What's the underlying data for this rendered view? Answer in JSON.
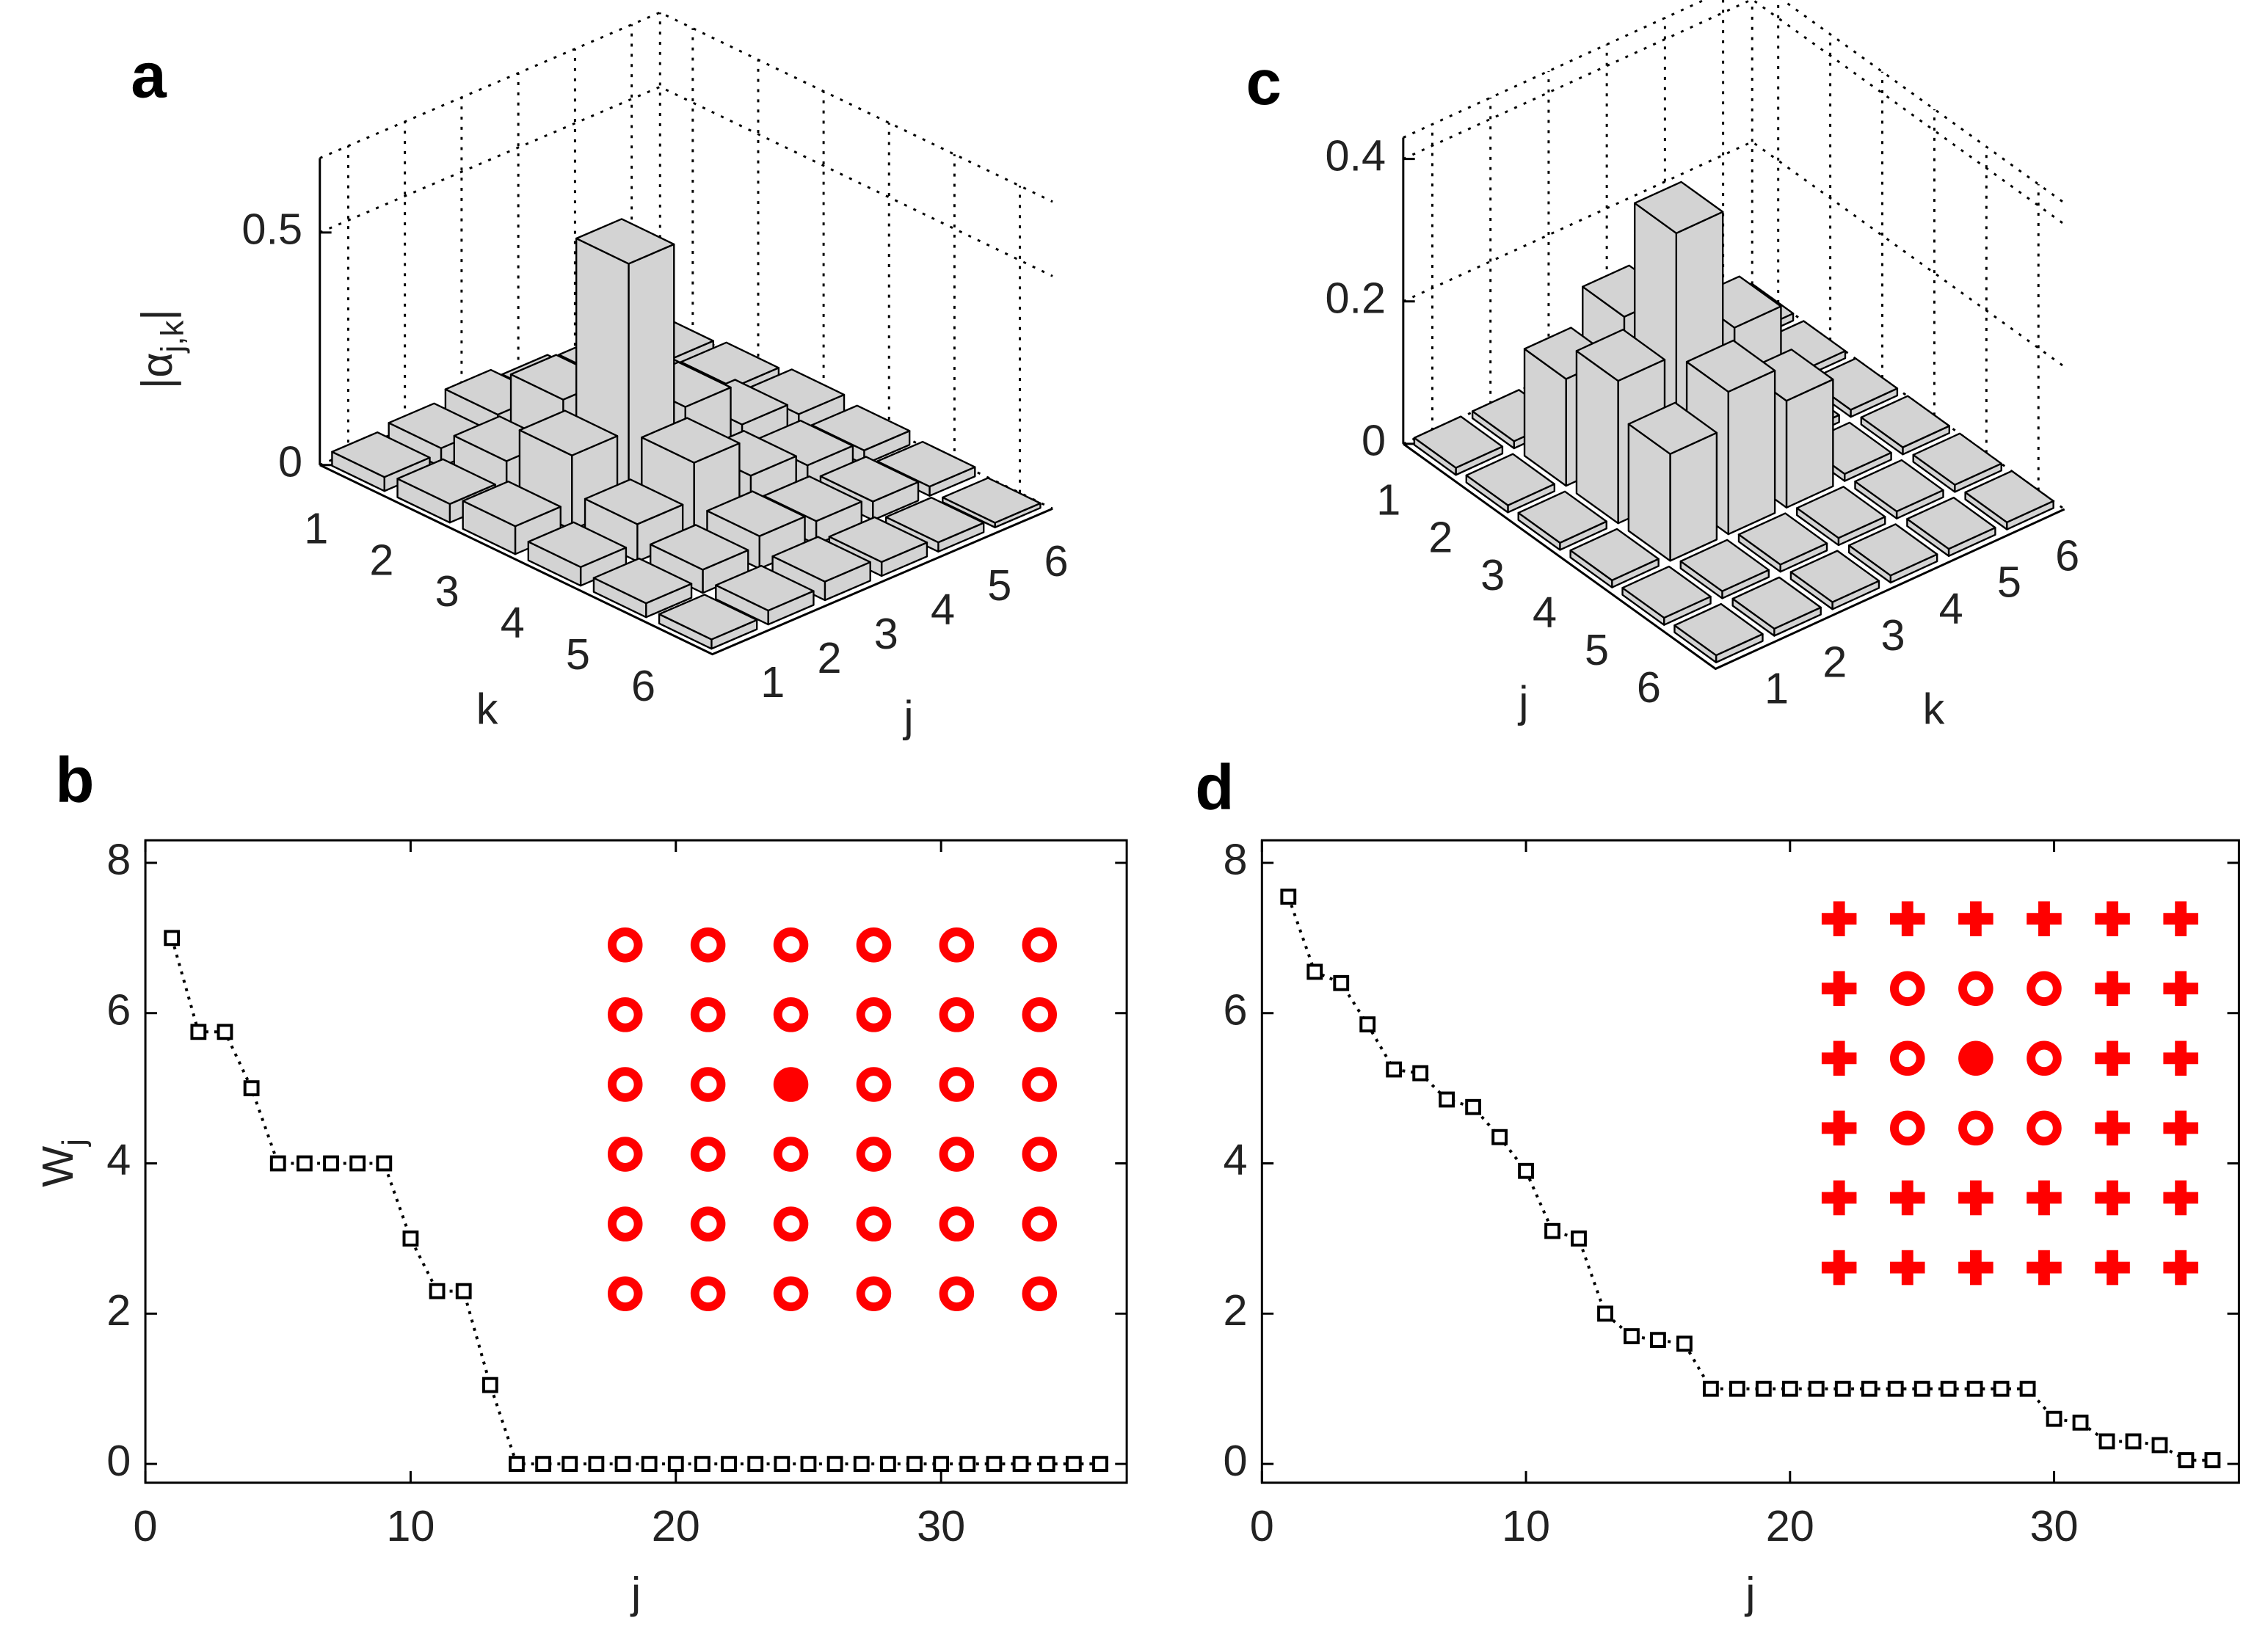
{
  "chart_data": [
    {
      "type": "bar3d",
      "panel": "a",
      "left_axis_label": "k",
      "right_axis_label": "j",
      "left_categories": [
        1,
        2,
        3,
        4,
        5,
        6
      ],
      "right_categories": [
        1,
        2,
        3,
        4,
        5,
        6
      ],
      "z": [
        [
          0.03,
          0.04,
          0.06,
          0.04,
          0.03,
          0.02
        ],
        [
          0.04,
          0.08,
          0.16,
          0.08,
          0.05,
          0.03
        ],
        [
          0.06,
          0.16,
          0.52,
          0.16,
          0.07,
          0.04
        ],
        [
          0.04,
          0.08,
          0.16,
          0.08,
          0.05,
          0.03
        ],
        [
          0.03,
          0.05,
          0.07,
          0.05,
          0.04,
          0.02
        ],
        [
          0.02,
          0.03,
          0.04,
          0.03,
          0.02,
          0.01
        ]
      ],
      "zlim": [
        0,
        0.66
      ],
      "zticks": [
        0,
        0.5
      ],
      "zlabel": [
        "|α",
        "j,k",
        "|"
      ],
      "color": "#d3d3d3",
      "grid": true
    },
    {
      "type": "line",
      "panel": "b",
      "x": [
        1,
        2,
        3,
        4,
        5,
        6,
        7,
        8,
        9,
        10,
        11,
        12,
        13,
        14,
        15,
        16,
        17,
        18,
        19,
        20,
        21,
        22,
        23,
        24,
        25,
        26,
        27,
        28,
        29,
        30,
        31,
        32,
        33,
        34,
        35,
        36
      ],
      "values": [
        7,
        5.75,
        5.75,
        5,
        4,
        4,
        4,
        4,
        4,
        3,
        2.3,
        2.3,
        1.05,
        0,
        0,
        0,
        0,
        0,
        0,
        0,
        0,
        0,
        0,
        0,
        0,
        0,
        0,
        0,
        0,
        0,
        0,
        0,
        0,
        0,
        0,
        0
      ],
      "xlim": [
        0,
        37
      ],
      "xticks": [
        0,
        10,
        20,
        30
      ],
      "ylim": [
        -0.25,
        8.3
      ],
      "yticks": [
        0,
        2,
        4,
        6,
        8
      ],
      "xlabel": "j",
      "ylabel": [
        "W",
        "j"
      ],
      "color": "#000000",
      "inset": {
        "color": "#ff0000",
        "rows": [
          "oooooo",
          "oooooo",
          "oo●ooo",
          "oooooo",
          "oooooo",
          "oooooo"
        ]
      }
    },
    {
      "type": "bar3d",
      "panel": "c",
      "left_axis_label": "j",
      "right_axis_label": "k",
      "left_categories": [
        1,
        2,
        3,
        4,
        5,
        6
      ],
      "right_categories": [
        1,
        2,
        3,
        4,
        5,
        6
      ],
      "z": [
        [
          0.01,
          0.01,
          0.01,
          0.01,
          0.01,
          0.01
        ],
        [
          0.01,
          0.15,
          0.2,
          0.15,
          0.01,
          0.01
        ],
        [
          0.01,
          0.2,
          0.37,
          0.2,
          0.01,
          0.01
        ],
        [
          0.01,
          0.15,
          0.2,
          0.15,
          0.01,
          0.01
        ],
        [
          0.01,
          0.01,
          0.01,
          0.01,
          0.01,
          0.01
        ],
        [
          0.01,
          0.01,
          0.01,
          0.01,
          0.01,
          0.01
        ]
      ],
      "zlim": [
        0,
        0.43
      ],
      "zticks": [
        0,
        0.2,
        0.4
      ],
      "color": "#d3d3d3",
      "grid": true
    },
    {
      "type": "line",
      "panel": "d",
      "x": [
        1,
        2,
        3,
        4,
        5,
        6,
        7,
        8,
        9,
        10,
        11,
        12,
        13,
        14,
        15,
        16,
        17,
        18,
        19,
        20,
        21,
        22,
        23,
        24,
        25,
        26,
        27,
        28,
        29,
        30,
        31,
        32,
        33,
        34,
        35,
        36
      ],
      "values": [
        7.55,
        6.55,
        6.4,
        5.85,
        5.25,
        5.2,
        4.85,
        4.75,
        4.35,
        3.9,
        3.1,
        3.0,
        2.0,
        1.7,
        1.65,
        1.6,
        1,
        1,
        1,
        1,
        1,
        1,
        1,
        1,
        1,
        1,
        1,
        1,
        1,
        0.6,
        0.55,
        0.3,
        0.3,
        0.25,
        0.05,
        0.05
      ],
      "xlim": [
        0,
        37
      ],
      "xticks": [
        0,
        10,
        20,
        30
      ],
      "ylim": [
        -0.25,
        8.3
      ],
      "yticks": [
        0,
        2,
        4,
        6,
        8
      ],
      "xlabel": "j",
      "color": "#000000",
      "inset": {
        "color": "#ff0000",
        "rows": [
          "++++++",
          "+ooo++",
          "+o●o++",
          "+ooo++",
          "++++++",
          "++++++"
        ]
      }
    }
  ]
}
